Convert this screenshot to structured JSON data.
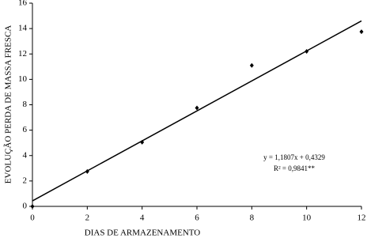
{
  "chart_data": {
    "type": "scatter",
    "x_label": "DIAS DE ARMAZENAMENTO",
    "y_label": "EVOLUÇÃO PERDA DE MASSA FRESCA",
    "x": [
      0,
      2,
      4,
      6,
      8,
      10,
      12
    ],
    "values": [
      0,
      2.75,
      5.05,
      7.75,
      11.1,
      12.2,
      13.75
    ],
    "color": "#000000",
    "xlim": [
      0,
      12
    ],
    "xticks": [
      0,
      2,
      4,
      6,
      8,
      10,
      12
    ],
    "ylim": [
      0,
      16
    ],
    "yticks": [
      0,
      2,
      4,
      6,
      8,
      10,
      12,
      14,
      16
    ],
    "trendline": {
      "slope": 1.1807,
      "intercept": 0.4329
    },
    "annotations": [
      "y = 1,1807x + 0,4329",
      "R² = 0,9841**"
    ]
  }
}
